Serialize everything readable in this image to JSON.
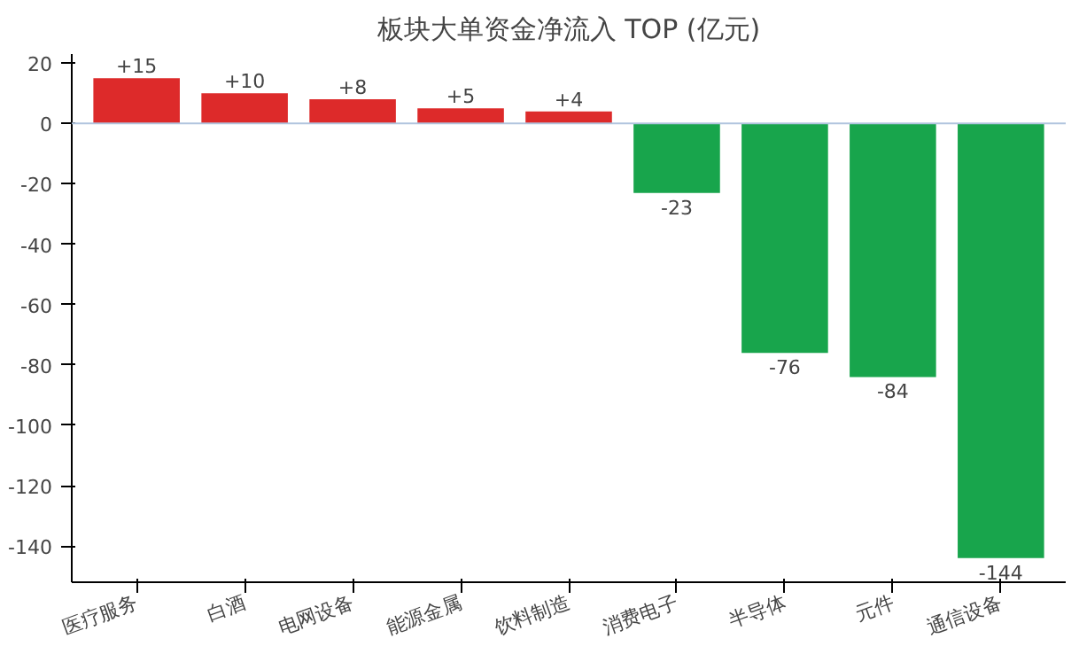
{
  "chart_data": {
    "type": "bar",
    "title": "板块大单资金净流入 TOP (亿元)",
    "categories": [
      "医疗服务",
      "白酒",
      "电网设备",
      "能源金属",
      "饮料制造",
      "消费电子",
      "半导体",
      "元件",
      "通信设备"
    ],
    "values": [
      15,
      10,
      8,
      5,
      4,
      -23,
      -76,
      -84,
      -144
    ],
    "colors": [
      "#dd2a2a",
      "#dd2a2a",
      "#dd2a2a",
      "#dd2a2a",
      "#dd2a2a",
      "#18a54c",
      "#18a54c",
      "#18a54c",
      "#18a54c"
    ],
    "value_labels": [
      "+15",
      "+10",
      "+8",
      "+5",
      "+4",
      "-23",
      "-76",
      "-84",
      "-144"
    ],
    "ylim": [
      -152,
      23
    ],
    "yticks": [
      -140,
      -120,
      -100,
      -80,
      -60,
      -40,
      -20,
      0,
      20
    ],
    "ref_lines": [
      {
        "axis": "y",
        "value": 0,
        "label": null,
        "color": "#b0c4de"
      }
    ],
    "grid": false
  }
}
